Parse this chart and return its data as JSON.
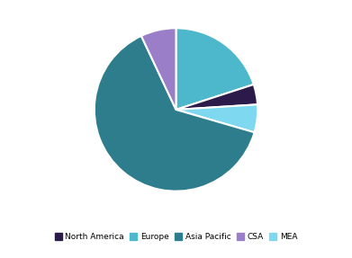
{
  "labels": [
    "Europe",
    "North America",
    "MEA",
    "Asia Pacific",
    "CSA"
  ],
  "values": [
    20.0,
    4.0,
    5.5,
    63.5,
    7.0
  ],
  "colors": [
    "#4db8cc",
    "#2c1a4a",
    "#7dd8f0",
    "#2e7d8c",
    "#9b7ec8"
  ],
  "legend_labels": [
    "North America",
    "Europe",
    "Asia Pacific",
    "CSA",
    "MEA"
  ],
  "legend_colors": [
    "#2c1a4a",
    "#4db8cc",
    "#2e7d8c",
    "#9b7ec8",
    "#7dd8f0"
  ],
  "startangle": 90,
  "counterclock": false,
  "background_color": "#ffffff",
  "edgecolor": "#ffffff",
  "linewidth": 1.5
}
